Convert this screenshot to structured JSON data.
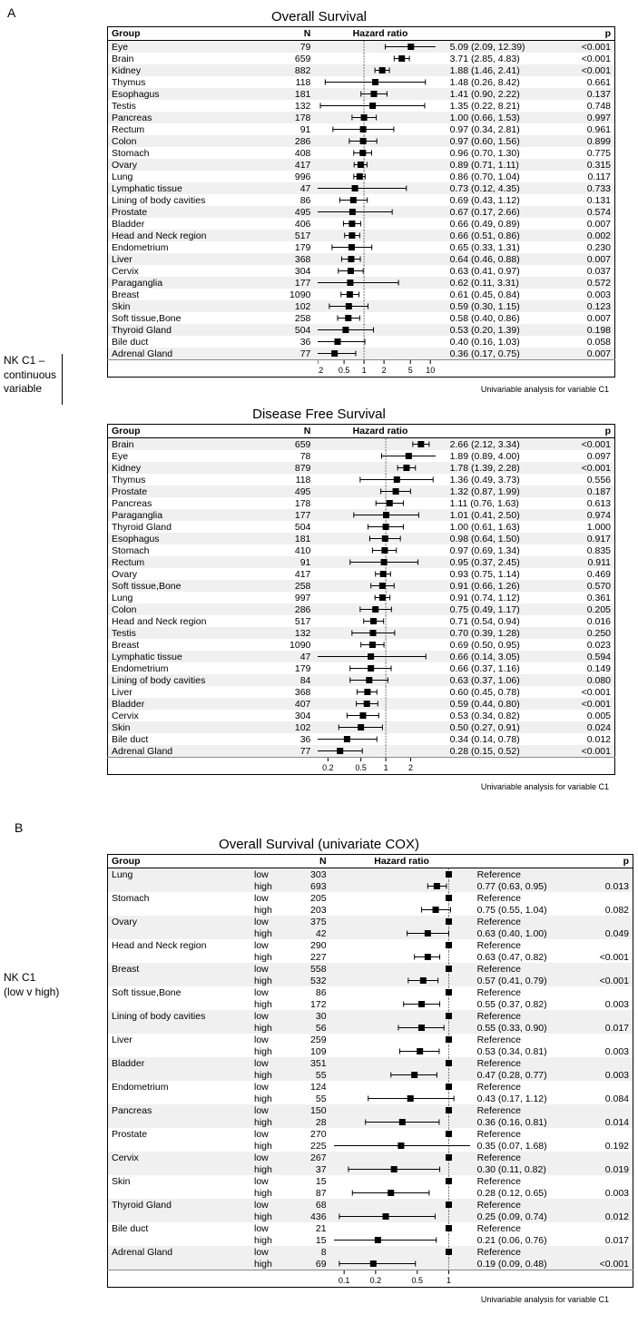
{
  "panel_A": {
    "labelA": "A",
    "sideLabel_line1": "NK C1 –",
    "sideLabel_line2": "continuous",
    "sideLabel_line3": "variable",
    "caption": "Univariable analysis for variable C1",
    "os": {
      "title": "Overall Survival",
      "headers": {
        "group": "Group",
        "n": "N",
        "hr": "Hazard ratio",
        "p": "p"
      },
      "xmin": 0.2,
      "xmax": 12,
      "refline": 1,
      "ticks": [
        0.2,
        0.5,
        1,
        2,
        5,
        10
      ],
      "plot_bg": "#ffffff",
      "marker_color": "#000000",
      "marker_size": 7,
      "ci_line_color": "#000000",
      "ref_line_color": "#808080",
      "rows": [
        {
          "group": "Eye",
          "n": 79,
          "hr": 5.09,
          "lo": 2.09,
          "hi": 12.39,
          "p": "<0.001"
        },
        {
          "group": "Brain",
          "n": 659,
          "hr": 3.71,
          "lo": 2.85,
          "hi": 4.83,
          "p": "<0.001"
        },
        {
          "group": "Kidney",
          "n": 882,
          "hr": 1.88,
          "lo": 1.46,
          "hi": 2.41,
          "p": "<0.001"
        },
        {
          "group": "Thymus",
          "n": 118,
          "hr": 1.48,
          "lo": 0.26,
          "hi": 8.42,
          "p": "0.661"
        },
        {
          "group": "Esophagus",
          "n": 181,
          "hr": 1.41,
          "lo": 0.9,
          "hi": 2.22,
          "p": "0.137"
        },
        {
          "group": "Testis",
          "n": 132,
          "hr": 1.35,
          "lo": 0.22,
          "hi": 8.21,
          "p": "0.748"
        },
        {
          "group": "Pancreas",
          "n": 178,
          "hr": 1.0,
          "lo": 0.66,
          "hi": 1.53,
          "p": "0.997"
        },
        {
          "group": "Rectum",
          "n": 91,
          "hr": 0.97,
          "lo": 0.34,
          "hi": 2.81,
          "p": "0.961"
        },
        {
          "group": "Colon",
          "n": 286,
          "hr": 0.97,
          "lo": 0.6,
          "hi": 1.56,
          "p": "0.899"
        },
        {
          "group": "Stomach",
          "n": 408,
          "hr": 0.96,
          "lo": 0.7,
          "hi": 1.3,
          "p": "0.775"
        },
        {
          "group": "Ovary",
          "n": 417,
          "hr": 0.89,
          "lo": 0.71,
          "hi": 1.11,
          "p": "0.315"
        },
        {
          "group": "Lung",
          "n": 996,
          "hr": 0.86,
          "lo": 0.7,
          "hi": 1.04,
          "p": "0.117"
        },
        {
          "group": "Lymphatic tissue",
          "n": 47,
          "hr": 0.73,
          "lo": 0.12,
          "hi": 4.35,
          "p": "0.733"
        },
        {
          "group": "Lining of body cavities",
          "n": 86,
          "hr": 0.69,
          "lo": 0.43,
          "hi": 1.12,
          "p": "0.131"
        },
        {
          "group": "Prostate",
          "n": 495,
          "hr": 0.67,
          "lo": 0.17,
          "hi": 2.66,
          "p": "0.574"
        },
        {
          "group": "Bladder",
          "n": 406,
          "hr": 0.66,
          "lo": 0.49,
          "hi": 0.89,
          "p": "0.007"
        },
        {
          "group": "Head and Neck region",
          "n": 517,
          "hr": 0.66,
          "lo": 0.51,
          "hi": 0.86,
          "p": "0.002"
        },
        {
          "group": "Endometrium",
          "n": 179,
          "hr": 0.65,
          "lo": 0.33,
          "hi": 1.31,
          "p": "0.230"
        },
        {
          "group": "Liver",
          "n": 368,
          "hr": 0.64,
          "lo": 0.46,
          "hi": 0.88,
          "p": "0.007"
        },
        {
          "group": "Cervix",
          "n": 304,
          "hr": 0.63,
          "lo": 0.41,
          "hi": 0.97,
          "p": "0.037"
        },
        {
          "group": "Paraganglia",
          "n": 177,
          "hr": 0.62,
          "lo": 0.11,
          "hi": 3.31,
          "p": "0.572"
        },
        {
          "group": "Breast",
          "n": 1090,
          "hr": 0.61,
          "lo": 0.45,
          "hi": 0.84,
          "p": "0.003"
        },
        {
          "group": "Skin",
          "n": 102,
          "hr": 0.59,
          "lo": 0.3,
          "hi": 1.15,
          "p": "0.123"
        },
        {
          "group": "Soft tissue,Bone",
          "n": 258,
          "hr": 0.58,
          "lo": 0.4,
          "hi": 0.86,
          "p": "0.007"
        },
        {
          "group": "Thyroid Gland",
          "n": 504,
          "hr": 0.53,
          "lo": 0.2,
          "hi": 1.39,
          "p": "0.198"
        },
        {
          "group": "Bile duct",
          "n": 36,
          "hr": 0.4,
          "lo": 0.16,
          "hi": 1.03,
          "p": "0.058"
        },
        {
          "group": "Adrenal Gland",
          "n": 77,
          "hr": 0.36,
          "lo": 0.17,
          "hi": 0.75,
          "p": "0.007"
        }
      ]
    },
    "dfs": {
      "title": "Disease Free Survival",
      "headers": {
        "group": "Group",
        "n": "N",
        "hr": "Hazard ratio",
        "p": "p"
      },
      "xmin": 0.15,
      "xmax": 4,
      "refline": 1,
      "ticks": [
        0.2,
        0.5,
        1,
        2
      ],
      "plot_bg": "#ffffff",
      "marker_color": "#000000",
      "marker_size": 7,
      "ci_line_color": "#000000",
      "ref_line_color": "#808080",
      "rows": [
        {
          "group": "Brain",
          "n": 659,
          "hr": 2.66,
          "lo": 2.12,
          "hi": 3.34,
          "p": "<0.001"
        },
        {
          "group": "Eye",
          "n": 78,
          "hr": 1.89,
          "lo": 0.89,
          "hi": 4.0,
          "p": "0.097"
        },
        {
          "group": "Kidney",
          "n": 879,
          "hr": 1.78,
          "lo": 1.39,
          "hi": 2.28,
          "p": "<0.001"
        },
        {
          "group": "Thymus",
          "n": 118,
          "hr": 1.36,
          "lo": 0.49,
          "hi": 3.73,
          "p": "0.556"
        },
        {
          "group": "Prostate",
          "n": 495,
          "hr": 1.32,
          "lo": 0.87,
          "hi": 1.99,
          "p": "0.187"
        },
        {
          "group": "Pancreas",
          "n": 178,
          "hr": 1.11,
          "lo": 0.76,
          "hi": 1.63,
          "p": "0.613"
        },
        {
          "group": "Paraganglia",
          "n": 177,
          "hr": 1.01,
          "lo": 0.41,
          "hi": 2.5,
          "p": "0.974"
        },
        {
          "group": "Thyroid Gland",
          "n": 504,
          "hr": 1.0,
          "lo": 0.61,
          "hi": 1.63,
          "p": "1.000"
        },
        {
          "group": "Esophagus",
          "n": 181,
          "hr": 0.98,
          "lo": 0.64,
          "hi": 1.5,
          "p": "0.917"
        },
        {
          "group": "Stomach",
          "n": 410,
          "hr": 0.97,
          "lo": 0.69,
          "hi": 1.34,
          "p": "0.835"
        },
        {
          "group": "Rectum",
          "n": 91,
          "hr": 0.95,
          "lo": 0.37,
          "hi": 2.45,
          "p": "0.911"
        },
        {
          "group": "Ovary",
          "n": 417,
          "hr": 0.93,
          "lo": 0.75,
          "hi": 1.14,
          "p": "0.469"
        },
        {
          "group": "Soft tissue,Bone",
          "n": 258,
          "hr": 0.91,
          "lo": 0.66,
          "hi": 1.26,
          "p": "0.570"
        },
        {
          "group": "Lung",
          "n": 997,
          "hr": 0.91,
          "lo": 0.74,
          "hi": 1.12,
          "p": "0.361"
        },
        {
          "group": "Colon",
          "n": 286,
          "hr": 0.75,
          "lo": 0.49,
          "hi": 1.17,
          "p": "0.205"
        },
        {
          "group": "Head and Neck region",
          "n": 517,
          "hr": 0.71,
          "lo": 0.54,
          "hi": 0.94,
          "p": "0.016"
        },
        {
          "group": "Testis",
          "n": 132,
          "hr": 0.7,
          "lo": 0.39,
          "hi": 1.28,
          "p": "0.250"
        },
        {
          "group": "Breast",
          "n": 1090,
          "hr": 0.69,
          "lo": 0.5,
          "hi": 0.95,
          "p": "0.023"
        },
        {
          "group": "Lymphatic tissue",
          "n": 47,
          "hr": 0.66,
          "lo": 0.14,
          "hi": 3.05,
          "p": "0.594"
        },
        {
          "group": "Endometrium",
          "n": 179,
          "hr": 0.66,
          "lo": 0.37,
          "hi": 1.16,
          "p": "0.149"
        },
        {
          "group": "Lining of body cavities",
          "n": 84,
          "hr": 0.63,
          "lo": 0.37,
          "hi": 1.06,
          "p": "0.080"
        },
        {
          "group": "Liver",
          "n": 368,
          "hr": 0.6,
          "lo": 0.45,
          "hi": 0.78,
          "p": "<0.001"
        },
        {
          "group": "Bladder",
          "n": 407,
          "hr": 0.59,
          "lo": 0.44,
          "hi": 0.8,
          "p": "<0.001"
        },
        {
          "group": "Cervix",
          "n": 304,
          "hr": 0.53,
          "lo": 0.34,
          "hi": 0.82,
          "p": "0.005"
        },
        {
          "group": "Skin",
          "n": 102,
          "hr": 0.5,
          "lo": 0.27,
          "hi": 0.91,
          "p": "0.024"
        },
        {
          "group": "Bile duct",
          "n": 36,
          "hr": 0.34,
          "lo": 0.14,
          "hi": 0.78,
          "p": "0.012"
        },
        {
          "group": "Adrenal Gland",
          "n": 77,
          "hr": 0.28,
          "lo": 0.15,
          "hi": 0.52,
          "p": "<0.001"
        }
      ]
    }
  },
  "panel_B": {
    "labelB": "B",
    "sideLabel_line1": "NK C1",
    "sideLabel_line2": "(low v high)",
    "caption": "Univariable analysis for variable C1",
    "os": {
      "title": "Overall Survival (univariate COX)",
      "headers": {
        "group": "Group",
        "n": "N",
        "hr": "Hazard ratio",
        "p": "p"
      },
      "xmin": 0.08,
      "xmax": 1.6,
      "refline": 1,
      "ticks": [
        0.1,
        0.2,
        0.5,
        1
      ],
      "plot_bg": "#ffffff",
      "marker_color": "#000000",
      "marker_size": 7,
      "ci_line_color": "#000000",
      "ref_line_color": "#808080",
      "reference_label": "Reference",
      "rows": [
        {
          "group": "Lung",
          "low_n": 303,
          "high_n": 693,
          "hr": 0.77,
          "lo": 0.63,
          "hi": 0.95,
          "p": "0.013"
        },
        {
          "group": "Stomach",
          "low_n": 205,
          "high_n": 203,
          "hr": 0.75,
          "lo": 0.55,
          "hi": 1.04,
          "p": "0.082"
        },
        {
          "group": "Ovary",
          "low_n": 375,
          "high_n": 42,
          "hr": 0.63,
          "lo": 0.4,
          "hi": 1.0,
          "p": "0.049"
        },
        {
          "group": "Head and Neck region",
          "low_n": 290,
          "high_n": 227,
          "hr": 0.63,
          "lo": 0.47,
          "hi": 0.82,
          "p": "<0.001"
        },
        {
          "group": "Breast",
          "low_n": 558,
          "high_n": 532,
          "hr": 0.57,
          "lo": 0.41,
          "hi": 0.79,
          "p": "<0.001"
        },
        {
          "group": "Soft tissue,Bone",
          "low_n": 86,
          "high_n": 172,
          "hr": 0.55,
          "lo": 0.37,
          "hi": 0.82,
          "p": "0.003"
        },
        {
          "group": "Lining of body cavities",
          "low_n": 30,
          "high_n": 56,
          "hr": 0.55,
          "lo": 0.33,
          "hi": 0.9,
          "p": "0.017"
        },
        {
          "group": "Liver",
          "low_n": 259,
          "high_n": 109,
          "hr": 0.53,
          "lo": 0.34,
          "hi": 0.81,
          "p": "0.003"
        },
        {
          "group": "Bladder",
          "low_n": 351,
          "high_n": 55,
          "hr": 0.47,
          "lo": 0.28,
          "hi": 0.77,
          "p": "0.003"
        },
        {
          "group": "Endometrium",
          "low_n": 124,
          "high_n": 55,
          "hr": 0.43,
          "lo": 0.17,
          "hi": 1.12,
          "p": "0.084"
        },
        {
          "group": "Pancreas",
          "low_n": 150,
          "high_n": 28,
          "hr": 0.36,
          "lo": 0.16,
          "hi": 0.81,
          "p": "0.014"
        },
        {
          "group": "Prostate",
          "low_n": 270,
          "high_n": 225,
          "hr": 0.35,
          "lo": 0.07,
          "hi": 1.68,
          "p": "0.192"
        },
        {
          "group": "Cervix",
          "low_n": 267,
          "high_n": 37,
          "hr": 0.3,
          "lo": 0.11,
          "hi": 0.82,
          "p": "0.019"
        },
        {
          "group": "Skin",
          "low_n": 15,
          "high_n": 87,
          "hr": 0.28,
          "lo": 0.12,
          "hi": 0.65,
          "p": "0.003"
        },
        {
          "group": "Thyroid Gland",
          "low_n": 68,
          "high_n": 436,
          "hr": 0.25,
          "lo": 0.09,
          "hi": 0.74,
          "p": "0.012"
        },
        {
          "group": "Bile duct",
          "low_n": 21,
          "high_n": 15,
          "hr": 0.21,
          "lo": 0.06,
          "hi": 0.76,
          "p": "0.017"
        },
        {
          "group": "Adrenal Gland",
          "low_n": 8,
          "high_n": 69,
          "hr": 0.19,
          "lo": 0.09,
          "hi": 0.48,
          "p": "<0.001"
        }
      ]
    }
  }
}
